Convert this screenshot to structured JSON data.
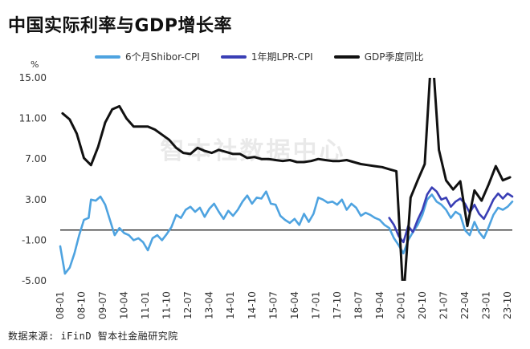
{
  "title": "中国实际利率与GDP增长率",
  "source_text": "数据来源: iFinD 智本社金融研究院",
  "watermark": "智本社数据中心",
  "chart_data": {
    "type": "line",
    "unit": "%",
    "ylim": [
      -5,
      15
    ],
    "yticks": [
      "15.00",
      "11.00",
      "7.00",
      "3.00",
      "-1.00",
      "-5.00"
    ],
    "ytick_values": [
      15,
      11,
      7,
      3,
      -1,
      -5
    ],
    "reference_line": 0,
    "x_tick_labels": [
      "08-01",
      "08-10",
      "09-07",
      "10-04",
      "11-01",
      "11-10",
      "12-07",
      "13-04",
      "14-01",
      "14-10",
      "15-07",
      "16-04",
      "17-01",
      "17-10",
      "18-07",
      "19-04",
      "20-01",
      "20-10",
      "21-07",
      "22-04",
      "23-01",
      "23-10"
    ],
    "x_start": "2008-01",
    "x_end": "2023-12",
    "legend_position": "top",
    "series": [
      {
        "name": "6个月Shibor-CPI",
        "color": "#4ea3e0",
        "points": [
          [
            "2008-01",
            -1.6
          ],
          [
            "2008-03",
            -4.3
          ],
          [
            "2008-05",
            -3.7
          ],
          [
            "2008-07",
            -2.3
          ],
          [
            "2008-09",
            -0.5
          ],
          [
            "2008-11",
            1.0
          ],
          [
            "2009-01",
            1.2
          ],
          [
            "2009-02",
            3.0
          ],
          [
            "2009-04",
            2.9
          ],
          [
            "2009-06",
            3.3
          ],
          [
            "2009-08",
            2.5
          ],
          [
            "2009-10",
            1.0
          ],
          [
            "2009-12",
            -0.5
          ],
          [
            "2010-02",
            0.2
          ],
          [
            "2010-04",
            -0.3
          ],
          [
            "2010-06",
            -0.5
          ],
          [
            "2010-08",
            -1.0
          ],
          [
            "2010-10",
            -0.8
          ],
          [
            "2010-12",
            -1.2
          ],
          [
            "2011-02",
            -2.0
          ],
          [
            "2011-04",
            -0.8
          ],
          [
            "2011-06",
            -0.5
          ],
          [
            "2011-08",
            -1.0
          ],
          [
            "2011-10",
            -0.4
          ],
          [
            "2011-12",
            0.3
          ],
          [
            "2012-02",
            1.5
          ],
          [
            "2012-04",
            1.2
          ],
          [
            "2012-06",
            2.0
          ],
          [
            "2012-08",
            2.3
          ],
          [
            "2012-10",
            1.8
          ],
          [
            "2012-12",
            2.2
          ],
          [
            "2013-02",
            1.3
          ],
          [
            "2013-04",
            2.1
          ],
          [
            "2013-06",
            2.6
          ],
          [
            "2013-08",
            1.8
          ],
          [
            "2013-10",
            1.1
          ],
          [
            "2013-12",
            1.9
          ],
          [
            "2014-02",
            1.4
          ],
          [
            "2014-04",
            2.0
          ],
          [
            "2014-06",
            2.8
          ],
          [
            "2014-08",
            3.4
          ],
          [
            "2014-10",
            2.6
          ],
          [
            "2014-12",
            3.2
          ],
          [
            "2015-02",
            3.1
          ],
          [
            "2015-04",
            3.8
          ],
          [
            "2015-06",
            2.6
          ],
          [
            "2015-08",
            2.5
          ],
          [
            "2015-10",
            1.4
          ],
          [
            "2015-12",
            1.0
          ],
          [
            "2016-02",
            0.7
          ],
          [
            "2016-04",
            1.1
          ],
          [
            "2016-06",
            0.5
          ],
          [
            "2016-08",
            1.6
          ],
          [
            "2016-10",
            0.8
          ],
          [
            "2016-12",
            1.6
          ],
          [
            "2017-02",
            3.2
          ],
          [
            "2017-04",
            3.0
          ],
          [
            "2017-06",
            2.7
          ],
          [
            "2017-08",
            2.8
          ],
          [
            "2017-10",
            2.5
          ],
          [
            "2017-12",
            3.0
          ],
          [
            "2018-02",
            2.0
          ],
          [
            "2018-04",
            2.6
          ],
          [
            "2018-06",
            2.2
          ],
          [
            "2018-08",
            1.4
          ],
          [
            "2018-10",
            1.7
          ],
          [
            "2018-12",
            1.5
          ],
          [
            "2019-02",
            1.2
          ],
          [
            "2019-04",
            1.0
          ],
          [
            "2019-06",
            0.5
          ],
          [
            "2019-08",
            0.2
          ],
          [
            "2019-10",
            -0.8
          ],
          [
            "2019-12",
            -1.5
          ],
          [
            "2020-02",
            -2.3
          ],
          [
            "2020-04",
            -1.0
          ],
          [
            "2020-06",
            -0.2
          ],
          [
            "2020-08",
            0.5
          ],
          [
            "2020-10",
            1.5
          ],
          [
            "2020-12",
            3.0
          ],
          [
            "2021-02",
            3.5
          ],
          [
            "2021-04",
            2.8
          ],
          [
            "2021-06",
            2.5
          ],
          [
            "2021-08",
            2.0
          ],
          [
            "2021-10",
            1.2
          ],
          [
            "2021-12",
            1.8
          ],
          [
            "2022-02",
            1.5
          ],
          [
            "2022-04",
            0.0
          ],
          [
            "2022-06",
            -0.5
          ],
          [
            "2022-08",
            0.8
          ],
          [
            "2022-10",
            -0.2
          ],
          [
            "2022-12",
            -0.8
          ],
          [
            "2023-02",
            0.3
          ],
          [
            "2023-04",
            1.5
          ],
          [
            "2023-06",
            2.2
          ],
          [
            "2023-08",
            2.0
          ],
          [
            "2023-10",
            2.3
          ],
          [
            "2023-12",
            2.8
          ]
        ]
      },
      {
        "name": "1年期LPR-CPI",
        "color": "#3a3fb5",
        "points": [
          [
            "2019-08",
            1.2
          ],
          [
            "2019-10",
            0.5
          ],
          [
            "2019-12",
            -0.6
          ],
          [
            "2020-02",
            -1.2
          ],
          [
            "2020-04",
            0.4
          ],
          [
            "2020-06",
            -0.2
          ],
          [
            "2020-08",
            1.0
          ],
          [
            "2020-10",
            2.0
          ],
          [
            "2020-12",
            3.5
          ],
          [
            "2021-02",
            4.2
          ],
          [
            "2021-04",
            3.8
          ],
          [
            "2021-06",
            3.0
          ],
          [
            "2021-08",
            3.2
          ],
          [
            "2021-10",
            2.3
          ],
          [
            "2021-12",
            2.8
          ],
          [
            "2022-02",
            3.1
          ],
          [
            "2022-04",
            2.6
          ],
          [
            "2022-06",
            1.7
          ],
          [
            "2022-08",
            2.5
          ],
          [
            "2022-10",
            1.6
          ],
          [
            "2022-12",
            1.1
          ],
          [
            "2023-02",
            2.0
          ],
          [
            "2023-04",
            3.0
          ],
          [
            "2023-06",
            3.6
          ],
          [
            "2023-08",
            3.1
          ],
          [
            "2023-10",
            3.6
          ],
          [
            "2023-12",
            3.3
          ]
        ]
      },
      {
        "name": "GDP季度同比",
        "color": "#111111",
        "points": [
          [
            "2008-02",
            11.5
          ],
          [
            "2008-05",
            10.9
          ],
          [
            "2008-08",
            9.5
          ],
          [
            "2008-11",
            7.1
          ],
          [
            "2009-02",
            6.4
          ],
          [
            "2009-05",
            8.2
          ],
          [
            "2009-08",
            10.6
          ],
          [
            "2009-11",
            11.9
          ],
          [
            "2010-02",
            12.2
          ],
          [
            "2010-05",
            11.0
          ],
          [
            "2010-08",
            10.2
          ],
          [
            "2010-11",
            10.2
          ],
          [
            "2011-02",
            10.2
          ],
          [
            "2011-05",
            9.9
          ],
          [
            "2011-08",
            9.4
          ],
          [
            "2011-11",
            8.9
          ],
          [
            "2012-02",
            8.1
          ],
          [
            "2012-05",
            7.6
          ],
          [
            "2012-08",
            7.5
          ],
          [
            "2012-11",
            8.1
          ],
          [
            "2013-02",
            7.8
          ],
          [
            "2013-05",
            7.6
          ],
          [
            "2013-08",
            7.9
          ],
          [
            "2013-11",
            7.7
          ],
          [
            "2014-02",
            7.5
          ],
          [
            "2014-05",
            7.5
          ],
          [
            "2014-08",
            7.1
          ],
          [
            "2014-11",
            7.2
          ],
          [
            "2015-02",
            7.0
          ],
          [
            "2015-05",
            7.0
          ],
          [
            "2015-08",
            6.9
          ],
          [
            "2015-11",
            6.8
          ],
          [
            "2016-02",
            6.9
          ],
          [
            "2016-05",
            6.7
          ],
          [
            "2016-08",
            6.7
          ],
          [
            "2016-11",
            6.8
          ],
          [
            "2017-02",
            7.0
          ],
          [
            "2017-05",
            6.9
          ],
          [
            "2017-08",
            6.8
          ],
          [
            "2017-11",
            6.8
          ],
          [
            "2018-02",
            6.9
          ],
          [
            "2018-05",
            6.7
          ],
          [
            "2018-08",
            6.5
          ],
          [
            "2018-11",
            6.4
          ],
          [
            "2019-02",
            6.3
          ],
          [
            "2019-05",
            6.2
          ],
          [
            "2019-08",
            6.0
          ],
          [
            "2019-11",
            5.8
          ],
          [
            "2020-02",
            -6.8
          ],
          [
            "2020-05",
            3.2
          ],
          [
            "2020-08",
            4.9
          ],
          [
            "2020-11",
            6.5
          ],
          [
            "2021-02",
            18.3
          ],
          [
            "2021-05",
            7.9
          ],
          [
            "2021-08",
            4.9
          ],
          [
            "2021-11",
            4.0
          ],
          [
            "2022-02",
            4.8
          ],
          [
            "2022-05",
            0.4
          ],
          [
            "2022-08",
            3.9
          ],
          [
            "2022-11",
            2.9
          ],
          [
            "2023-02",
            4.5
          ],
          [
            "2023-05",
            6.3
          ],
          [
            "2023-08",
            4.9
          ],
          [
            "2023-11",
            5.2
          ]
        ]
      }
    ]
  }
}
